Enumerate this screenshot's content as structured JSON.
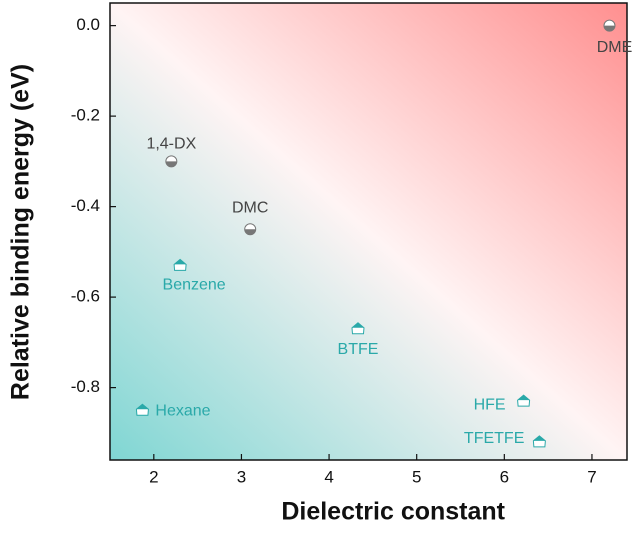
{
  "chart_data": {
    "type": "scatter",
    "xlabel": "Dielectric constant",
    "ylabel": "Relative binding energy (eV)",
    "xlim": [
      1.5,
      7.4
    ],
    "ylim": [
      -0.96,
      0.05
    ],
    "xticks": [
      2,
      3,
      4,
      5,
      6,
      7
    ],
    "yticks": [
      {
        "value": 0,
        "label": "0.0"
      },
      -0.2,
      -0.4,
      -0.6,
      -0.8
    ],
    "points": [
      {
        "label": "DME",
        "x": 7.2,
        "y": 0.0,
        "color": "#444444"
      },
      {
        "label": "1,4-DX",
        "x": 2.2,
        "y": -0.3,
        "color": "#444444"
      },
      {
        "label": "DMC",
        "x": 3.1,
        "y": -0.45,
        "color": "#444444"
      },
      {
        "label": "Benzene",
        "x": 2.3,
        "y": -0.53,
        "color": "#2aa9a9"
      },
      {
        "label": "BTFE",
        "x": 4.33,
        "y": -0.67,
        "color": "#2aa9a9"
      },
      {
        "label": "Hexane",
        "x": 1.87,
        "y": -0.85,
        "color": "#2aa9a9"
      },
      {
        "label": "HFE",
        "x": 6.22,
        "y": -0.83,
        "color": "#2aa9a9"
      },
      {
        "label": "TFETFE",
        "x": 6.4,
        "y": -0.92,
        "color": "#2aa9a9"
      }
    ]
  }
}
